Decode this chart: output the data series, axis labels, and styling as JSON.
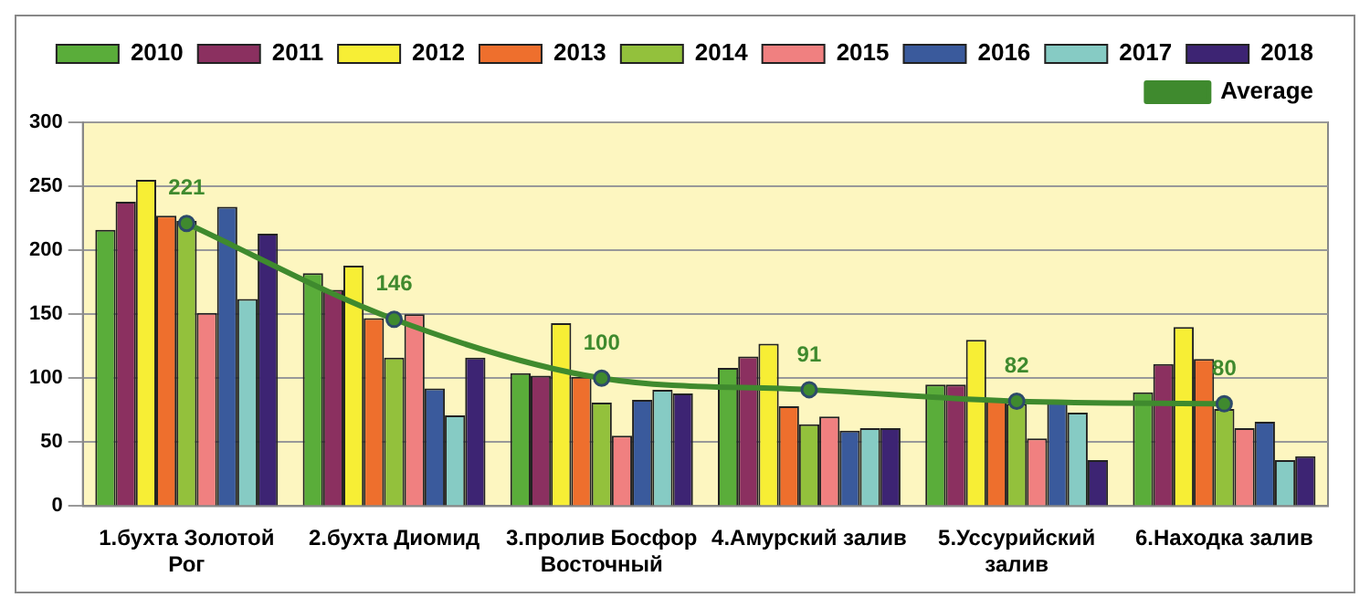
{
  "chart_data": {
    "type": "bar",
    "categories": [
      "1.бухта Золотой Рог",
      "2.бухта Диомид",
      "3.пролив Босфор Восточный",
      "4.Амурский залив",
      "5.Уссурийский залив",
      "6.Находка залив"
    ],
    "series": [
      {
        "name": "2010",
        "color": "#5aad3a",
        "values": [
          216,
          182,
          104,
          108,
          95,
          89
        ]
      },
      {
        "name": "2011",
        "color": "#8b3060",
        "values": [
          238,
          169,
          102,
          117,
          95,
          111
        ]
      },
      {
        "name": "2012",
        "color": "#f7ee35",
        "values": [
          255,
          188,
          143,
          127,
          130,
          140
        ]
      },
      {
        "name": "2013",
        "color": "#ee6f2d",
        "values": [
          227,
          147,
          101,
          78,
          84,
          115
        ]
      },
      {
        "name": "2014",
        "color": "#93c13c",
        "values": [
          223,
          116,
          81,
          64,
          80,
          76
        ]
      },
      {
        "name": "2015",
        "color": "#f08080",
        "values": [
          151,
          150,
          55,
          70,
          53,
          61
        ]
      },
      {
        "name": "2016",
        "color": "#3a5a9c",
        "values": [
          234,
          92,
          83,
          59,
          83,
          66
        ]
      },
      {
        "name": "2017",
        "color": "#86cbc4",
        "values": [
          162,
          71,
          91,
          61,
          73,
          36
        ]
      },
      {
        "name": "2018",
        "color": "#3d2473",
        "values": [
          213,
          116,
          88,
          61,
          36,
          39
        ]
      },
      {
        "name": "Average",
        "type": "line",
        "color": "#3f8a2e",
        "marker": "circle",
        "values": [
          221,
          146,
          100,
          91,
          82,
          80
        ],
        "value_labels": [
          "221",
          "146",
          "100",
          "91",
          "82",
          "80"
        ]
      }
    ],
    "ylim": [
      0,
      300
    ],
    "yticks": [
      0,
      50,
      100,
      150,
      200,
      250,
      300
    ],
    "grid": "y",
    "legend": "top right"
  }
}
